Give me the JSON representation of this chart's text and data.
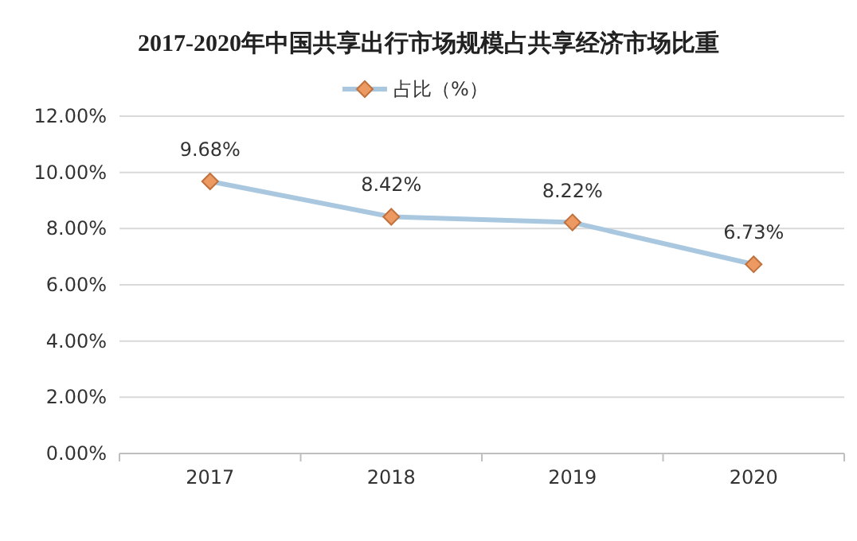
{
  "chart_data": {
    "type": "line",
    "title": "2017-2020年中国共享出行市场规模占共享经济市场比重",
    "categories": [
      "2017",
      "2018",
      "2019",
      "2020"
    ],
    "series": [
      {
        "name": "占比（%）",
        "color": "#a9c8e0",
        "colors": [
          "#ec9a62",
          "#ec9a62",
          "#ec9a62",
          "#ec9a62"
        ],
        "values": [
          9.68,
          8.42,
          8.22,
          6.73
        ],
        "value_labels": [
          "9.68%",
          "8.42%",
          "8.22%",
          "6.73%"
        ]
      }
    ],
    "ylim": [
      0,
      12
    ],
    "yticks": [
      {
        "value": 0,
        "label": "0.00%"
      },
      {
        "value": 2,
        "label": "2.00%"
      },
      {
        "value": 4,
        "label": "4.00%"
      },
      {
        "value": 6,
        "label": "6.00%"
      },
      {
        "value": 8,
        "label": "8.00%"
      },
      {
        "value": 10,
        "label": "10.00%"
      },
      {
        "value": 12,
        "label": "12.00%"
      }
    ],
    "grid": "y",
    "legend": "top",
    "marker": "diamond",
    "line_style": "solid"
  }
}
